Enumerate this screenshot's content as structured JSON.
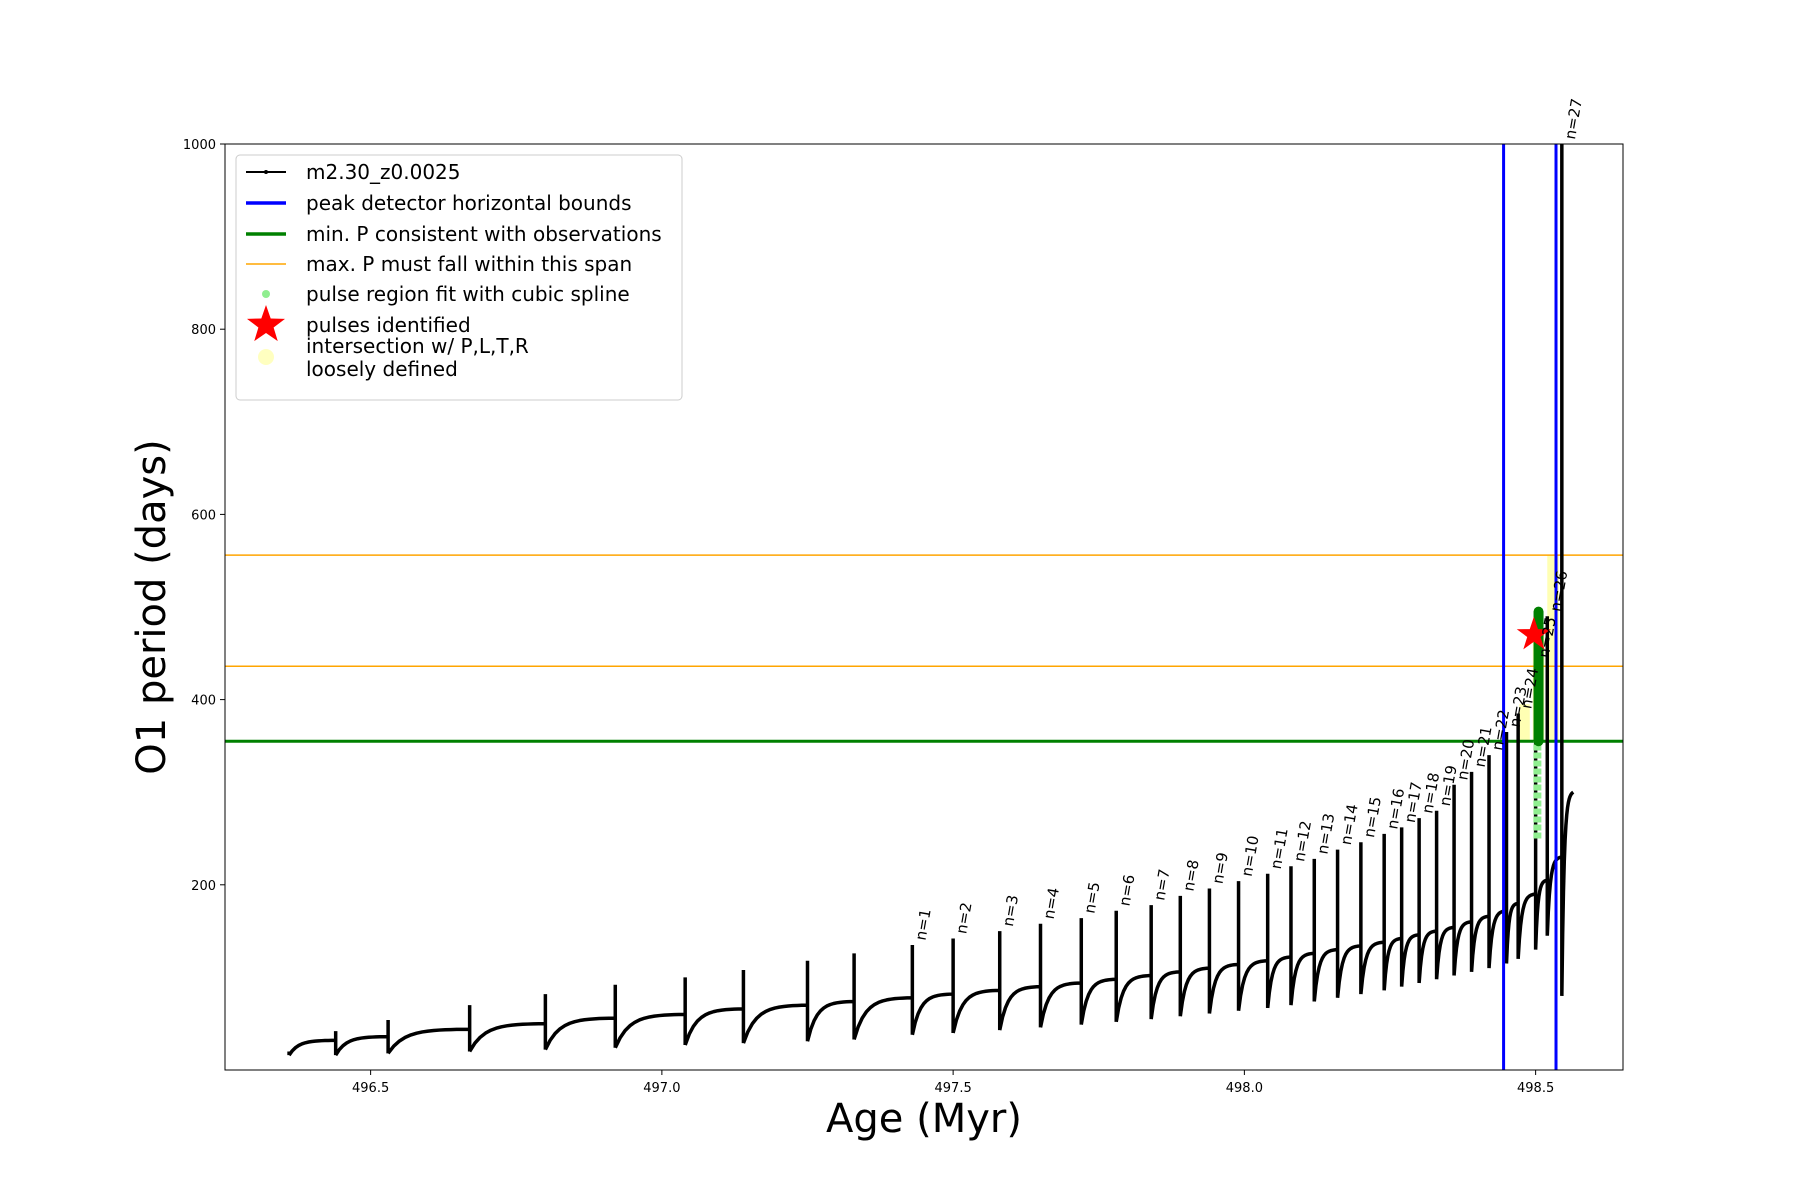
{
  "chart_data": {
    "type": "line",
    "xlabel": "Age (Myr)",
    "ylabel": "O1 period (days)",
    "xlim": [
      496.25,
      498.65
    ],
    "ylim": [
      0,
      1000
    ],
    "xticks": [
      {
        "value": 496.5,
        "label": "496.5"
      },
      {
        "value": 497.0,
        "label": "497.0"
      },
      {
        "value": 497.5,
        "label": "497.5"
      },
      {
        "value": 498.0,
        "label": "498.0"
      },
      {
        "value": 498.5,
        "label": "498.5"
      }
    ],
    "yticks": [
      {
        "value": 200,
        "label": "200"
      },
      {
        "value": 400,
        "label": "400"
      },
      {
        "value": 600,
        "label": "600"
      },
      {
        "value": 800,
        "label": "800"
      },
      {
        "value": 1000,
        "label": "1000"
      }
    ],
    "grid": false,
    "legend_position": "top-left",
    "legend": [
      {
        "label": "m2.30_z0.0025",
        "style": "line-marker",
        "color": "#000000"
      },
      {
        "label": "peak detector horizontal bounds",
        "style": "line",
        "color": "#0000ff"
      },
      {
        "label": "min. P consistent with observations",
        "style": "line",
        "color": "#008000"
      },
      {
        "label": "max. P must fall within this span",
        "style": "thin-line",
        "color": "#ffa500"
      },
      {
        "label": "pulse region fit with cubic spline",
        "style": "dot",
        "color": "#90ee90"
      },
      {
        "label": "pulses identified",
        "style": "star",
        "color": "#ff0000"
      },
      {
        "label": "intersection w/ P,L,T,R",
        "label2": "loosely defined",
        "style": "big-dot",
        "color": "#ffffc0"
      }
    ],
    "vertical_lines": [
      {
        "x": 498.445,
        "color": "#0000ff"
      },
      {
        "x": 498.535,
        "color": "#0000ff"
      }
    ],
    "horizontal_lines": [
      {
        "y": 355,
        "color": "#008000",
        "width": 3
      },
      {
        "y": 436,
        "color": "#ffa500",
        "width": 1.5
      },
      {
        "y": 556,
        "color": "#ffa500",
        "width": 1.5
      }
    ],
    "series_name": "m2.30_z0.0025",
    "pulses_pre": [
      {
        "age": 496.36,
        "base": 16,
        "peak": 20,
        "end": 32
      },
      {
        "age": 496.44,
        "base": 16,
        "peak": 42,
        "end": 36
      },
      {
        "age": 496.53,
        "base": 18,
        "peak": 54,
        "end": 44
      },
      {
        "age": 496.67,
        "base": 20,
        "peak": 70,
        "end": 50
      },
      {
        "age": 496.8,
        "base": 22,
        "peak": 82,
        "end": 56
      },
      {
        "age": 496.92,
        "base": 24,
        "peak": 92,
        "end": 60
      },
      {
        "age": 497.04,
        "base": 27,
        "peak": 100,
        "end": 66
      },
      {
        "age": 497.14,
        "base": 29,
        "peak": 108,
        "end": 70
      },
      {
        "age": 497.25,
        "base": 31,
        "peak": 118,
        "end": 74
      },
      {
        "age": 497.33,
        "base": 33,
        "peak": 126,
        "end": 78
      }
    ],
    "pulses": [
      {
        "n": "n=1",
        "age": 497.43,
        "base": 38,
        "peak": 135,
        "end": 82
      },
      {
        "n": "n=2",
        "age": 497.5,
        "base": 40,
        "peak": 142,
        "end": 86
      },
      {
        "n": "n=3",
        "age": 497.58,
        "base": 43,
        "peak": 150,
        "end": 90
      },
      {
        "n": "n=4",
        "age": 497.65,
        "base": 46,
        "peak": 158,
        "end": 94
      },
      {
        "n": "n=5",
        "age": 497.72,
        "base": 49,
        "peak": 164,
        "end": 98
      },
      {
        "n": "n=6",
        "age": 497.78,
        "base": 52,
        "peak": 172,
        "end": 102
      },
      {
        "n": "n=7",
        "age": 497.84,
        "base": 55,
        "peak": 178,
        "end": 106
      },
      {
        "n": "n=8",
        "age": 497.89,
        "base": 58,
        "peak": 188,
        "end": 110
      },
      {
        "n": "n=9",
        "age": 497.94,
        "base": 61,
        "peak": 196,
        "end": 114
      },
      {
        "n": "n=10",
        "age": 497.99,
        "base": 64,
        "peak": 204,
        "end": 118
      },
      {
        "n": "n=11",
        "age": 498.04,
        "base": 67,
        "peak": 212,
        "end": 122
      },
      {
        "n": "n=12",
        "age": 498.08,
        "base": 70,
        "peak": 220,
        "end": 126
      },
      {
        "n": "n=13",
        "age": 498.12,
        "base": 74,
        "peak": 228,
        "end": 130
      },
      {
        "n": "n=14",
        "age": 498.16,
        "base": 78,
        "peak": 238,
        "end": 134
      },
      {
        "n": "n=15",
        "age": 498.2,
        "base": 82,
        "peak": 246,
        "end": 138
      },
      {
        "n": "n=16",
        "age": 498.24,
        "base": 86,
        "peak": 255,
        "end": 142
      },
      {
        "n": "n=17",
        "age": 498.27,
        "base": 90,
        "peak": 262,
        "end": 146
      },
      {
        "n": "n=18",
        "age": 498.3,
        "base": 94,
        "peak": 272,
        "end": 150
      },
      {
        "n": "n=19",
        "age": 498.33,
        "base": 98,
        "peak": 280,
        "end": 154
      },
      {
        "n": "n=20",
        "age": 498.36,
        "base": 102,
        "peak": 308,
        "end": 160
      },
      {
        "n": "n=21",
        "age": 498.39,
        "base": 106,
        "peak": 322,
        "end": 166
      },
      {
        "n": "n=22",
        "age": 498.42,
        "base": 110,
        "peak": 340,
        "end": 172
      },
      {
        "n": "n=23",
        "age": 498.45,
        "base": 115,
        "peak": 365,
        "end": 180
      },
      {
        "n": "n=24",
        "age": 498.47,
        "base": 120,
        "peak": 385,
        "end": 190
      },
      {
        "n": "n=25",
        "age": 498.5,
        "base": 130,
        "peak": 440,
        "end": 205
      },
      {
        "n": "n=26",
        "age": 498.52,
        "base": 145,
        "peak": 490,
        "end": 230
      },
      {
        "n": "n=27",
        "age": 498.545,
        "base": 80,
        "peak": 1000,
        "end": 300
      }
    ],
    "pulse_region_spline": [
      {
        "x": 498.503,
        "y_from": 250,
        "y_to": 355
      }
    ],
    "fit_green": [
      {
        "x": 498.505,
        "y_from": 355,
        "y_to": 495
      }
    ],
    "intersection_regions": [
      {
        "x0": 498.472,
        "x1": 498.49,
        "y_from": 355,
        "y_to": 395
      },
      {
        "x0": 498.495,
        "x1": 498.515,
        "y_from": 355,
        "y_to": 470
      },
      {
        "x0": 498.52,
        "x1": 498.54,
        "y_from": 355,
        "y_to": 556
      }
    ],
    "identified_pulse": {
      "x": 498.497,
      "y": 470
    }
  }
}
